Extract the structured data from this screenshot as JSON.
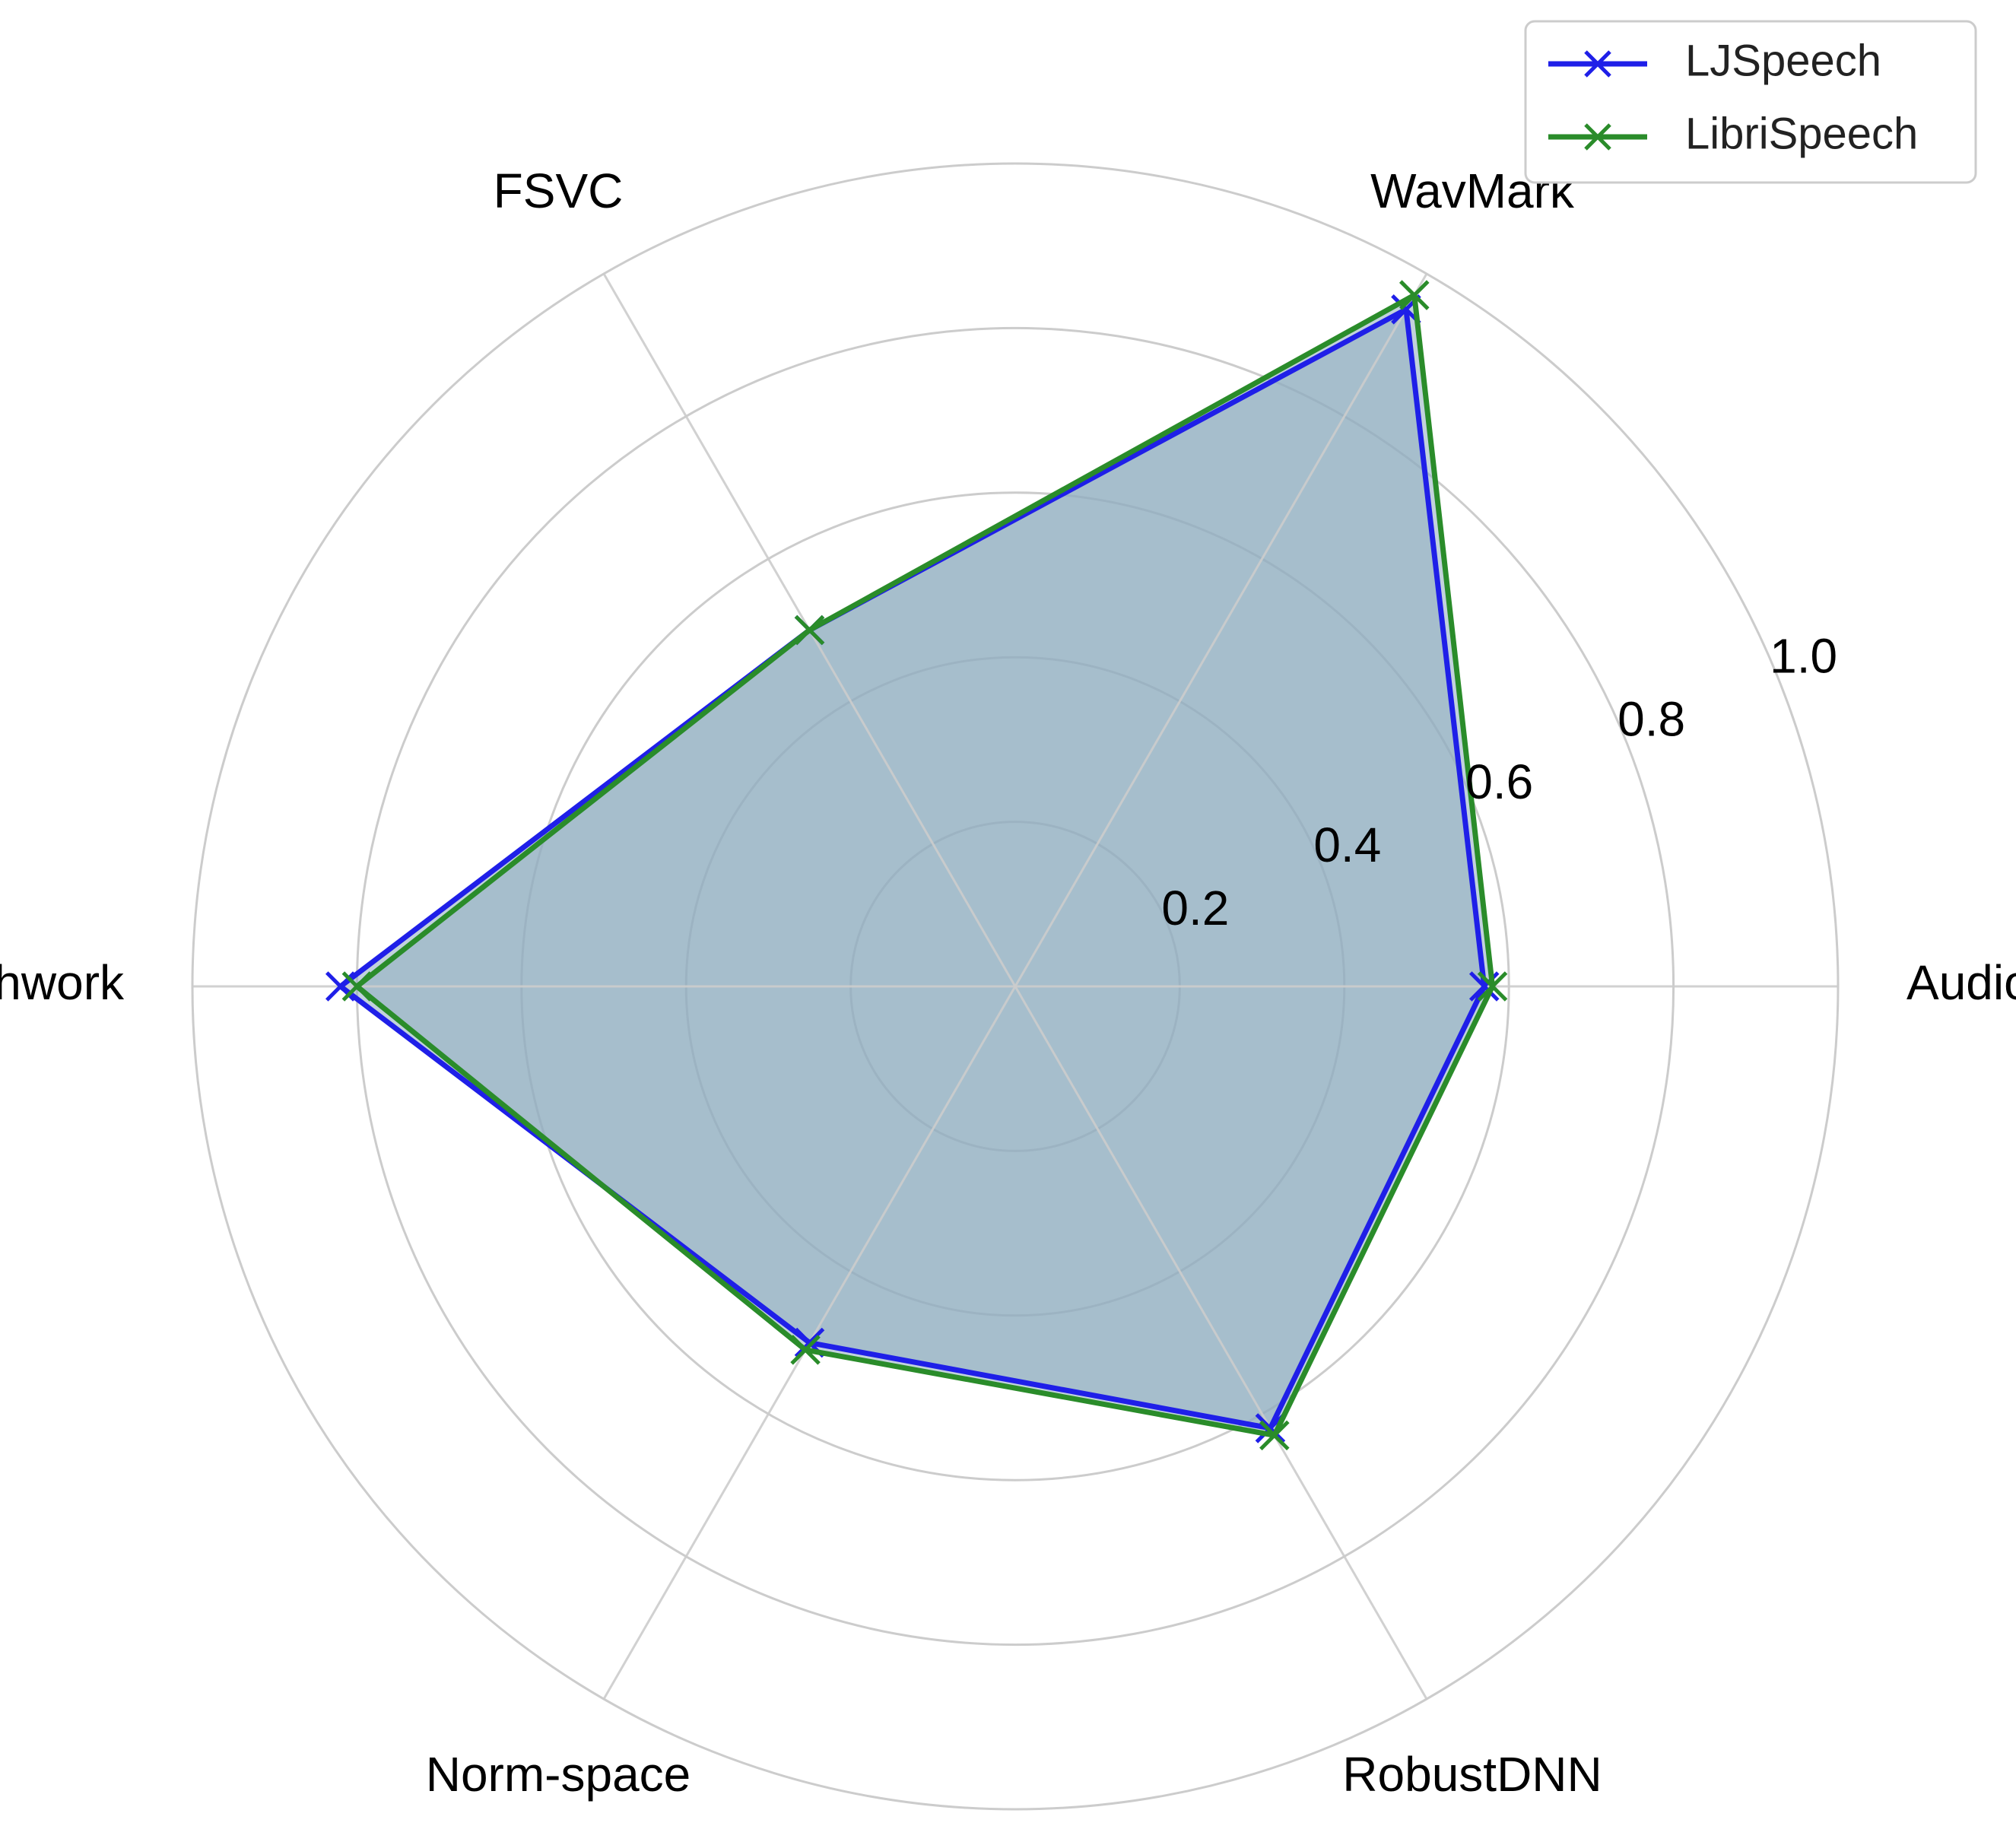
{
  "chart_data": {
    "type": "radar",
    "categories": [
      "AudioSeal",
      "WavMark",
      "FSVC",
      "Patchwork",
      "Norm-space",
      "RobustDNN"
    ],
    "series": [
      {
        "name": "LJSpeech",
        "values": [
          0.57,
          0.95,
          0.5,
          0.82,
          0.5,
          0.62
        ],
        "color": "#1f1fe8"
      },
      {
        "name": "LibriSpeech",
        "values": [
          0.58,
          0.97,
          0.5,
          0.8,
          0.51,
          0.63
        ],
        "color": "#2a8c2a"
      }
    ],
    "rlim": [
      0,
      1.0
    ],
    "rticks": [
      0.2,
      0.4,
      0.6,
      0.8,
      1.0
    ],
    "rtick_labels": [
      "0.2",
      "0.4",
      "0.6",
      "0.8",
      "1.0"
    ],
    "fill_color": "#8fadbf",
    "grid_color": "#cccccc",
    "grid": true,
    "legend": "top-right",
    "marker": "x"
  }
}
